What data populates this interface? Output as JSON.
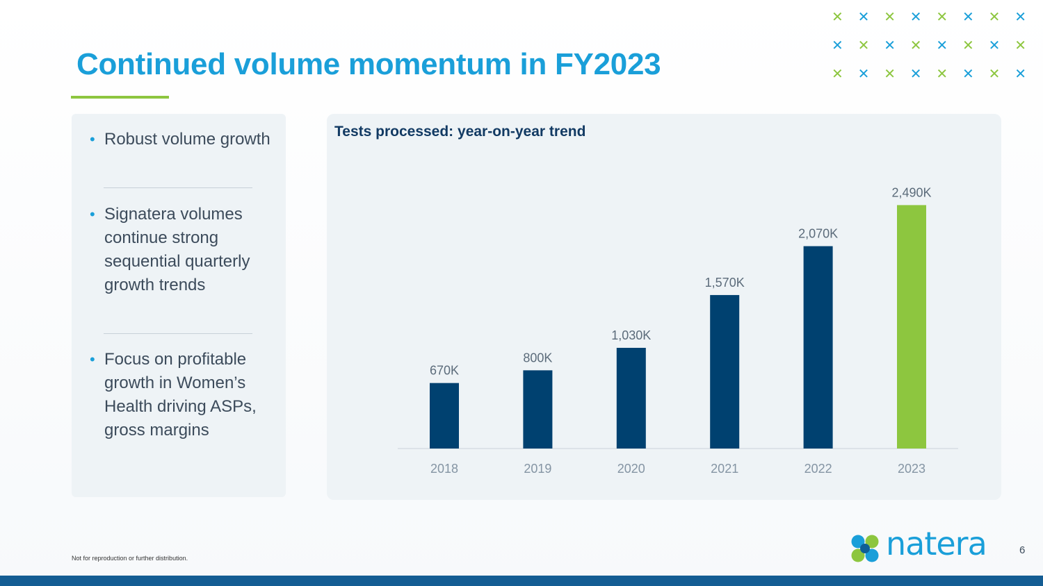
{
  "slide": {
    "title": "Continued volume momentum in FY2023",
    "page_number": "6",
    "footer_note": "Not for reproduction or further distribution."
  },
  "brand": {
    "logo_text": "natera",
    "accent_blue": "#1a9fd9",
    "accent_green": "#8dc63f",
    "navy": "#004170",
    "footer_bar": "#145d93"
  },
  "bullets": [
    "Robust volume growth",
    "Signatera volumes continue strong sequential quarterly growth trends",
    "Focus on profitable growth in Women’s Health driving ASPs, gross margins"
  ],
  "chart_data": {
    "type": "bar",
    "title": "Tests processed: year-on-year trend",
    "categories": [
      "2018",
      "2019",
      "2020",
      "2021",
      "2022",
      "2023"
    ],
    "values": [
      670,
      800,
      1030,
      1570,
      2070,
      2490
    ],
    "value_labels": [
      "670K",
      "800K",
      "1,030K",
      "1,570K",
      "2,070K",
      "2,490K"
    ],
    "unit": "K tests",
    "bar_colors": [
      "#004170",
      "#004170",
      "#004170",
      "#004170",
      "#004170",
      "#8dc63f"
    ],
    "ylim": [
      0,
      2500
    ],
    "grid": false,
    "xlabel": "",
    "ylabel": ""
  }
}
